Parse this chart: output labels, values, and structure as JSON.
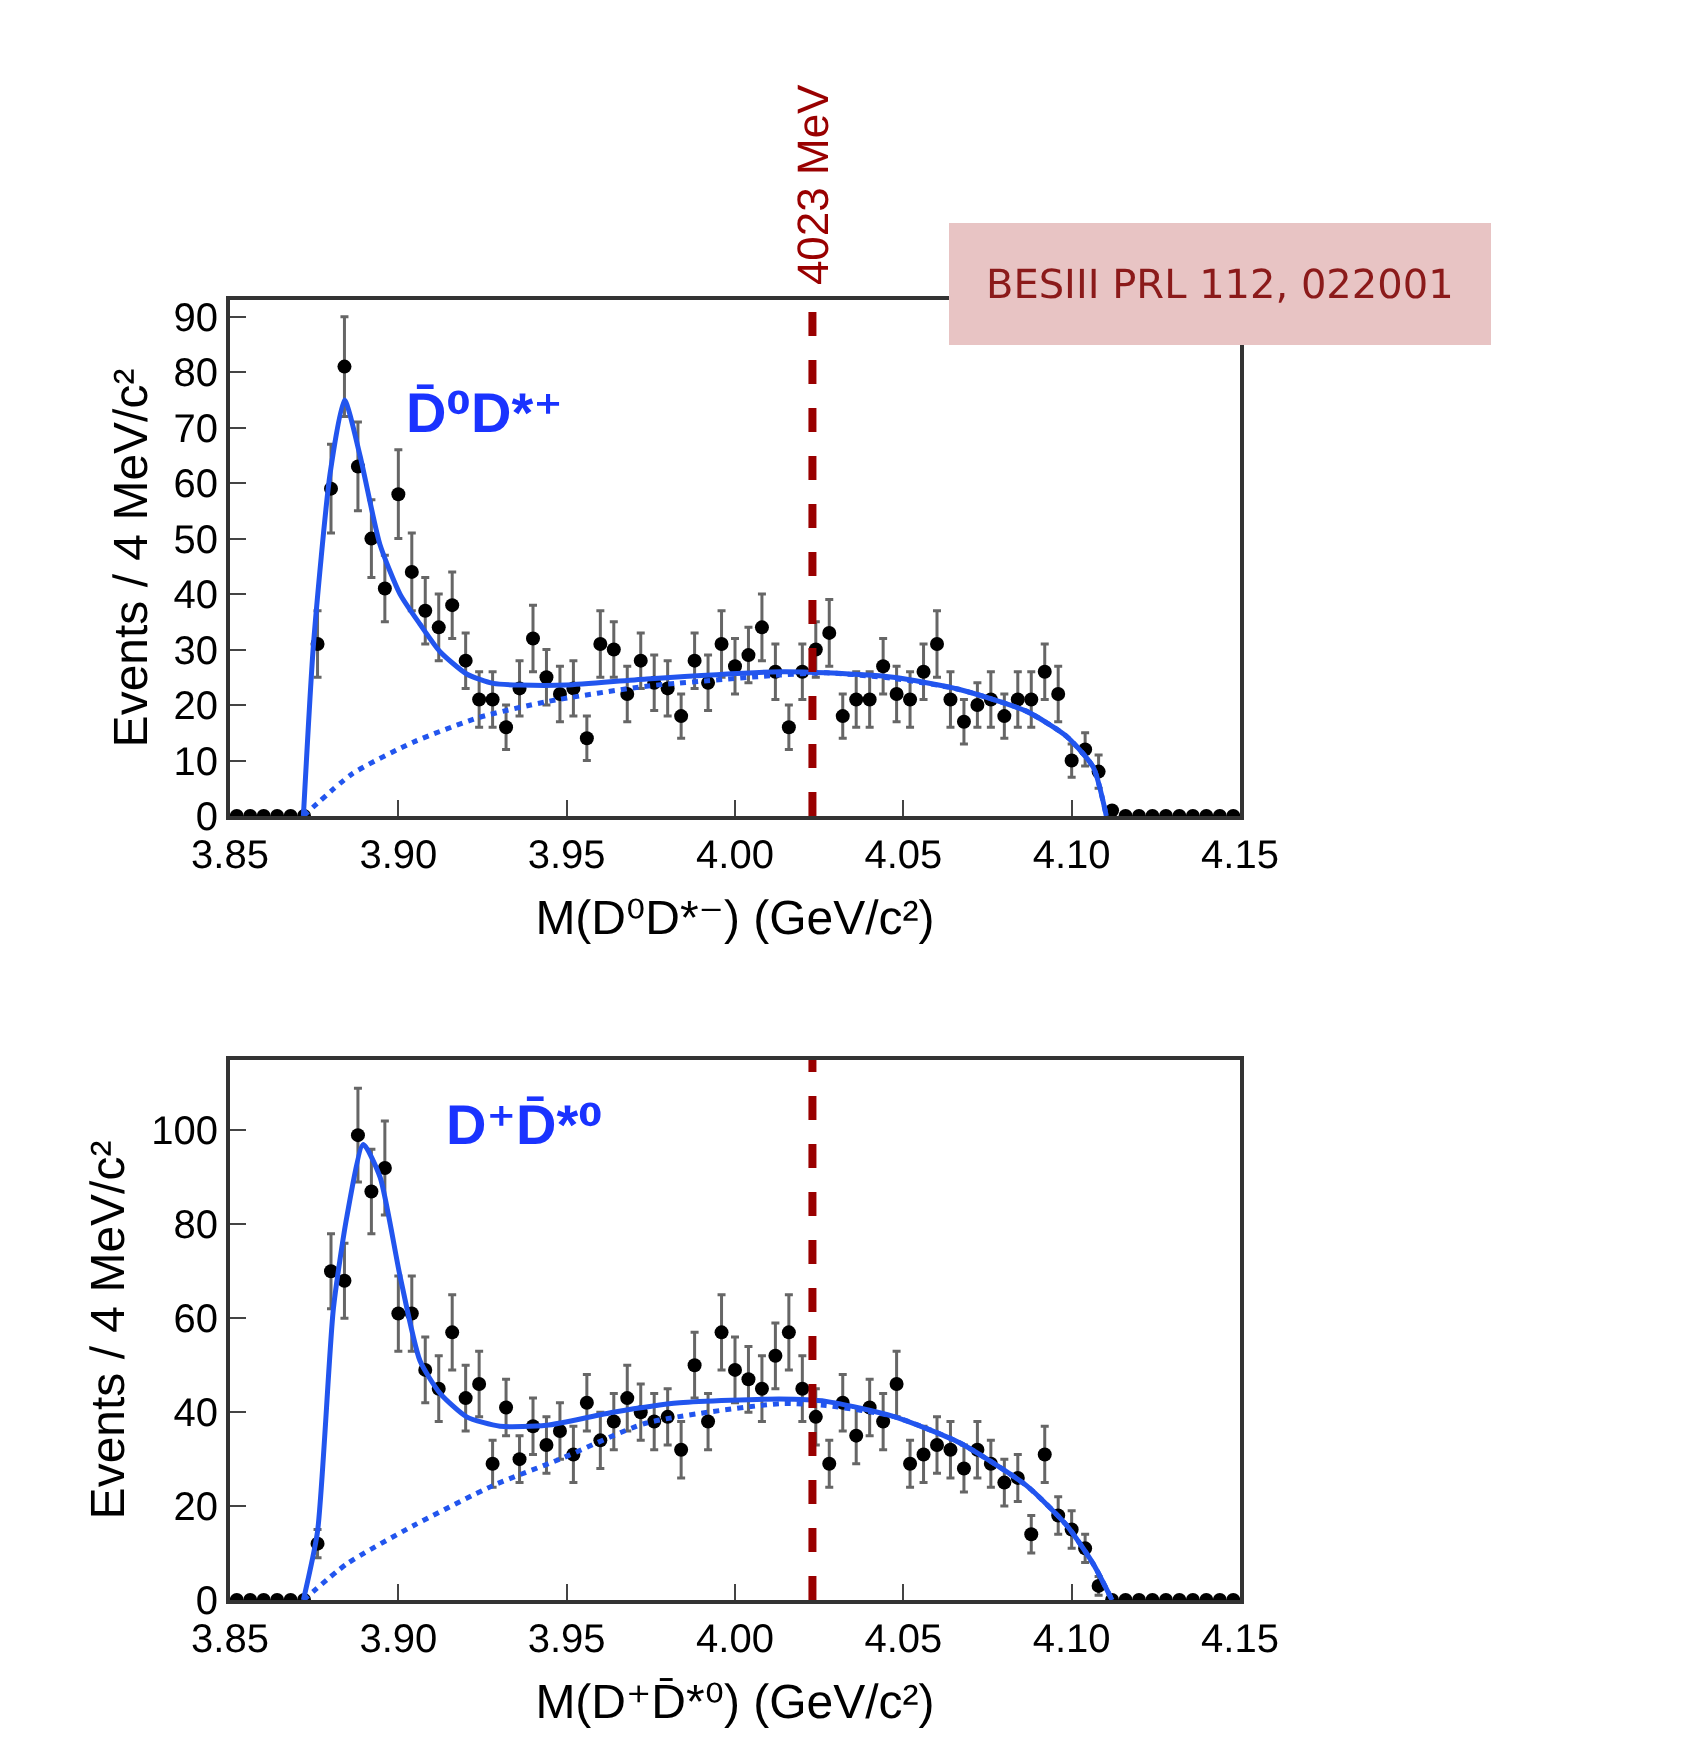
{
  "chart_data": [
    {
      "type": "scatter",
      "xlabel": "M(D⁰D*⁻) (GeV/c²)",
      "ylabel": "Events / 4 MeV/c²",
      "xlim": [
        3.85,
        4.15
      ],
      "xticks": [
        3.85,
        {
          "value": 3.9,
          "label": "3.90"
        },
        3.95,
        {
          "value": 4.0,
          "label": "4.00"
        },
        4.05,
        {
          "value": 4.1,
          "label": "4.10"
        },
        4.15
      ],
      "ylim": [
        0,
        93
      ],
      "yticks": [
        0,
        10,
        20,
        30,
        40,
        50,
        60,
        70,
        80,
        90
      ],
      "annotations": [
        "D̄⁰D*⁺",
        "BESIII PRL 112, 022001"
      ],
      "ref_lines": [
        {
          "axis": "x",
          "value": 4.023,
          "label": "4023 MeV",
          "color": "#990000",
          "line_style": "dashed"
        }
      ],
      "series": [
        {
          "type": "scatter",
          "color": "#000000",
          "marker": "circle",
          "x": [
            3.852,
            3.856,
            3.86,
            3.864,
            3.868,
            3.872,
            3.876,
            3.88,
            3.884,
            3.888,
            3.892,
            3.896,
            3.9,
            3.904,
            3.908,
            3.912,
            3.916,
            3.92,
            3.924,
            3.928,
            3.932,
            3.936,
            3.94,
            3.944,
            3.948,
            3.952,
            3.956,
            3.96,
            3.964,
            3.968,
            3.972,
            3.976,
            3.98,
            3.984,
            3.988,
            3.992,
            3.996,
            4.0,
            4.004,
            4.008,
            4.012,
            4.016,
            4.02,
            4.024,
            4.028,
            4.032,
            4.036,
            4.04,
            4.044,
            4.048,
            4.052,
            4.056,
            4.06,
            4.064,
            4.068,
            4.072,
            4.076,
            4.08,
            4.084,
            4.088,
            4.092,
            4.096,
            4.1,
            4.104,
            4.108,
            4.112,
            4.116,
            4.12,
            4.124,
            4.128,
            4.132,
            4.136,
            4.14,
            4.144,
            4.148
          ],
          "values": [
            0,
            0,
            0,
            0,
            0,
            0,
            31,
            59,
            81,
            63,
            50,
            41,
            58,
            44,
            37,
            34,
            38,
            28,
            21,
            21,
            16,
            23,
            32,
            25,
            22,
            23,
            14,
            31,
            30,
            22,
            28,
            24,
            23,
            18,
            28,
            24,
            31,
            27,
            29,
            34,
            26,
            16,
            26,
            30,
            33,
            18,
            21,
            21,
            27,
            22,
            21,
            26,
            31,
            21,
            17,
            20,
            21,
            18,
            21,
            21,
            26,
            22,
            10,
            12,
            8,
            1,
            0,
            0,
            0,
            0,
            0,
            0,
            0,
            0,
            0
          ],
          "errors": [
            null,
            null,
            null,
            null,
            null,
            null,
            6,
            8,
            9,
            8,
            7,
            6,
            8,
            7,
            6,
            6,
            6,
            5,
            5,
            5,
            4,
            5,
            6,
            5,
            5,
            5,
            4,
            6,
            5,
            5,
            5,
            5,
            5,
            4,
            5,
            5,
            6,
            5,
            5,
            6,
            5,
            4,
            5,
            5,
            6,
            4,
            5,
            5,
            5,
            5,
            5,
            5,
            6,
            5,
            4,
            4,
            5,
            4,
            5,
            5,
            5,
            5,
            3,
            3,
            3,
            null,
            null,
            null,
            null,
            null,
            null,
            null,
            null,
            null,
            null
          ]
        },
        {
          "type": "line",
          "color": "#2255ee",
          "line_style": "solid",
          "x": [
            3.8718,
            3.8748,
            3.8797,
            3.884,
            3.8886,
            3.8945,
            3.9005,
            3.9064,
            3.9124,
            3.9203,
            3.9282,
            3.9361,
            3.9499,
            3.9737,
            4.0133,
            4.0271,
            4.047,
            4.0667,
            4.0865,
            4.0984,
            4.1064,
            4.1103
          ],
          "values": [
            0,
            31,
            61.6,
            75,
            65,
            49,
            40,
            34.6,
            29.6,
            25.6,
            23.9,
            23.6,
            23.6,
            24.7,
            26,
            25.8,
            25,
            22.8,
            18.9,
            14.4,
            8.8,
            0
          ]
        },
        {
          "type": "line",
          "color": "#2255ee",
          "line_style": "dotted",
          "x": [
            3.8718,
            3.8863,
            3.9044,
            3.9242,
            3.944,
            3.9737,
            4.0133,
            4.0271,
            4.047,
            4.0667,
            4.0865,
            4.0984,
            4.1064,
            4.1103
          ],
          "values": [
            0,
            7.6,
            13.3,
            17.8,
            20.6,
            23.4,
            25.4,
            25.8,
            24.8,
            22.8,
            18.9,
            14.4,
            8.8,
            0
          ]
        }
      ]
    },
    {
      "type": "scatter",
      "xlabel": "M(D⁺D̄*⁰) (GeV/c²)",
      "ylabel": "Events / 4 MeV/c²",
      "xlim": [
        3.85,
        4.15
      ],
      "xticks": [
        3.85,
        {
          "value": 3.9,
          "label": "3.90"
        },
        3.95,
        {
          "value": 4.0,
          "label": "4.00"
        },
        4.05,
        {
          "value": 4.1,
          "label": "4.10"
        },
        4.15
      ],
      "ylim": [
        0,
        115
      ],
      "yticks": [
        0,
        20,
        40,
        60,
        80,
        100
      ],
      "annotations": [
        "D⁺D̄*⁰"
      ],
      "ref_lines": [
        {
          "axis": "x",
          "value": 4.023,
          "color": "#990000",
          "line_style": "dashed"
        }
      ],
      "series": [
        {
          "type": "scatter",
          "color": "#000000",
          "marker": "circle",
          "x": [
            3.852,
            3.856,
            3.86,
            3.864,
            3.868,
            3.872,
            3.876,
            3.88,
            3.884,
            3.888,
            3.892,
            3.896,
            3.9,
            3.904,
            3.908,
            3.912,
            3.916,
            3.92,
            3.924,
            3.928,
            3.932,
            3.936,
            3.94,
            3.944,
            3.948,
            3.952,
            3.956,
            3.96,
            3.964,
            3.968,
            3.972,
            3.976,
            3.98,
            3.984,
            3.988,
            3.992,
            3.996,
            4.0,
            4.004,
            4.008,
            4.012,
            4.016,
            4.02,
            4.024,
            4.028,
            4.032,
            4.036,
            4.04,
            4.044,
            4.048,
            4.052,
            4.056,
            4.06,
            4.064,
            4.068,
            4.072,
            4.076,
            4.08,
            4.084,
            4.088,
            4.092,
            4.096,
            4.1,
            4.104,
            4.108,
            4.112,
            4.116,
            4.12,
            4.124,
            4.128,
            4.132,
            4.136,
            4.14,
            4.144,
            4.148
          ],
          "values": [
            0,
            0,
            0,
            0,
            0,
            0,
            12,
            70,
            68,
            99,
            87,
            92,
            61,
            61,
            49,
            45,
            57,
            43,
            46,
            29,
            41,
            30,
            37,
            33,
            36,
            31,
            42,
            34,
            38,
            43,
            40,
            38,
            39,
            32,
            50,
            38,
            57,
            49,
            47,
            45,
            52,
            57,
            45,
            39,
            29,
            42,
            35,
            41,
            38,
            46,
            29,
            31,
            33,
            32,
            28,
            32,
            29,
            25,
            26,
            14,
            31,
            18,
            15,
            11,
            3,
            0,
            0,
            0,
            0,
            0,
            0,
            0,
            0,
            0,
            0
          ],
          "errors": [
            null,
            null,
            null,
            null,
            null,
            null,
            3,
            8,
            8,
            10,
            9,
            10,
            8,
            8,
            7,
            7,
            8,
            7,
            7,
            5,
            6,
            5,
            6,
            6,
            6,
            6,
            6,
            6,
            6,
            7,
            6,
            6,
            6,
            6,
            7,
            6,
            8,
            7,
            7,
            7,
            7,
            8,
            7,
            6,
            5,
            6,
            6,
            6,
            6,
            7,
            5,
            6,
            6,
            6,
            5,
            6,
            5,
            5,
            5,
            4,
            6,
            4,
            4,
            3,
            2,
            null,
            null,
            null,
            null,
            null,
            null,
            null,
            null,
            null,
            null
          ]
        },
        {
          "type": "line",
          "color": "#2255ee",
          "line_style": "solid",
          "x": [
            3.8718,
            3.876,
            3.8807,
            3.8847,
            3.8896,
            3.8946,
            3.9005,
            3.9064,
            3.9124,
            3.9203,
            3.9302,
            3.944,
            3.9638,
            3.9836,
            4.0133,
            4.0271,
            4.047,
            4.0667,
            4.0865,
            4.0984,
            4.1064,
            4.112
          ],
          "values": [
            0,
            14.6,
            62,
            81.6,
            97,
            90,
            69,
            51,
            44,
            39,
            37,
            37.2,
            40,
            42,
            42.8,
            42.3,
            39.1,
            33.5,
            24.4,
            16,
            7.7,
            0
          ]
        },
        {
          "type": "line",
          "color": "#2255ee",
          "line_style": "dotted",
          "x": [
            3.8718,
            3.8847,
            3.9044,
            3.9282,
            3.948,
            3.9737,
            4.0133,
            4.0271,
            4.047,
            4.0667,
            4.0865,
            4.0984,
            4.1064,
            4.112
          ],
          "values": [
            0,
            7.7,
            15.8,
            24.4,
            30,
            37.7,
            41.8,
            41.4,
            39.1,
            33.5,
            24.4,
            16,
            7.7,
            0
          ]
        }
      ]
    }
  ]
}
